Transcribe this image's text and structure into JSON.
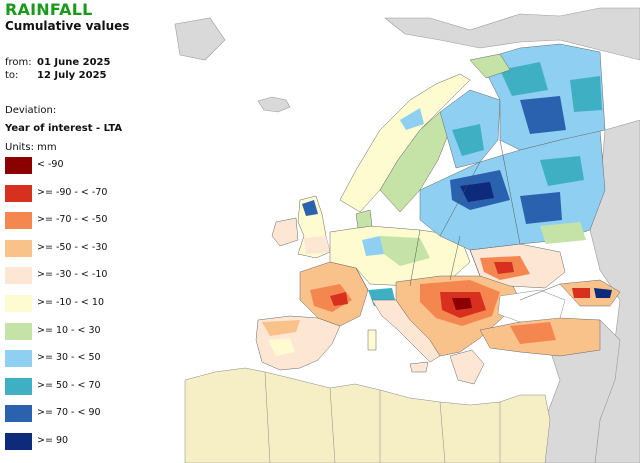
{
  "header": {
    "title": "RAINFALL",
    "subtitle": "Cumulative values"
  },
  "period": {
    "from_label": "from:",
    "from_value": "01 June 2025",
    "to_label": "to:",
    "to_value": "12 July 2025"
  },
  "deviation": {
    "label": "Deviation:",
    "value": "Year of interest - LTA"
  },
  "units": "Units: mm",
  "legend": [
    {
      "label": "< -90",
      "color": "#8b0000"
    },
    {
      "label": ">= -90 - < -70",
      "color": "#d7301f"
    },
    {
      "label": ">= -70 - < -50",
      "color": "#f4874f"
    },
    {
      "label": ">= -50 - < -30",
      "color": "#f9c28a"
    },
    {
      "label": ">= -30 - < -10",
      "color": "#fde6d4"
    },
    {
      "label": ">= -10 - < 10",
      "color": "#fdfbcf"
    },
    {
      "label": ">= 10 - < 30",
      "color": "#c6e3a7"
    },
    {
      "label": ">= 30 - < 50",
      "color": "#8fd0f2"
    },
    {
      "label": ">= 50 - < 70",
      "color": "#3fb0c4"
    },
    {
      "label": ">= 70 - < 90",
      "color": "#2b62b0"
    },
    {
      "label": ">= 90",
      "color": "#0d2b7a"
    }
  ],
  "map_colors": {
    "background": "#ffffff",
    "outside_land": "#d9d9d9",
    "sea": "#ffffff",
    "borders": "#555555"
  }
}
